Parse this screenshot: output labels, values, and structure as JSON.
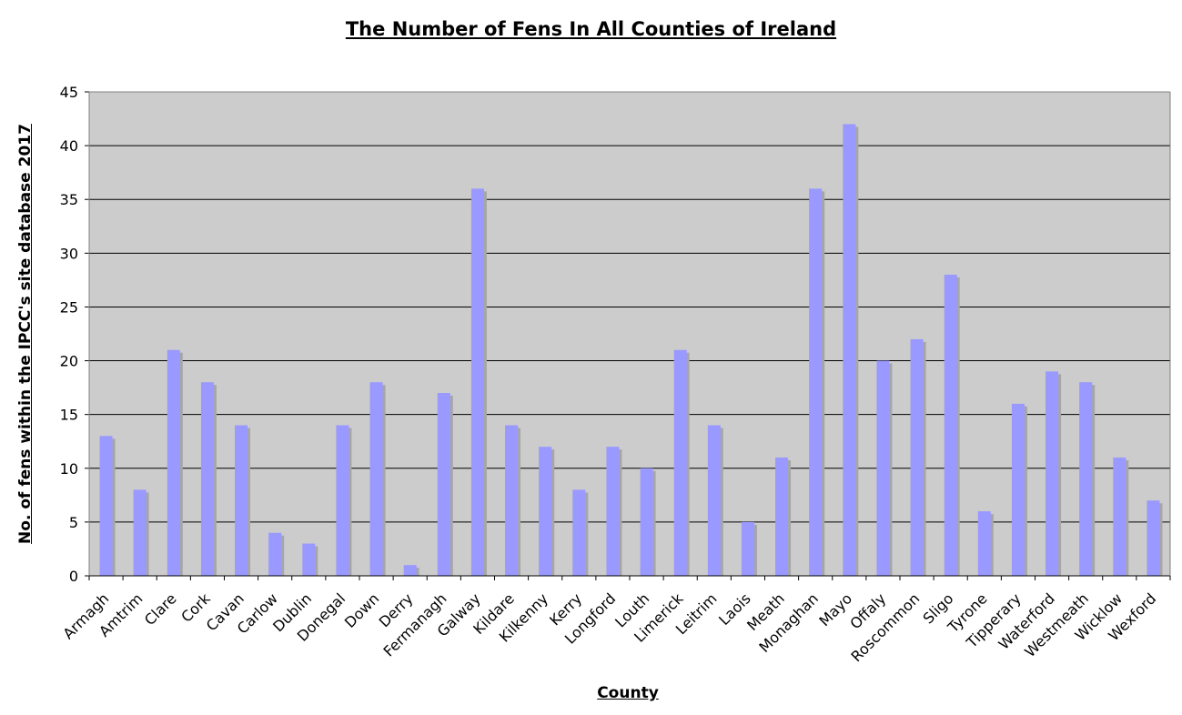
{
  "chart_data": {
    "type": "bar",
    "title": "The Number of Fens In All Counties of Ireland",
    "xlabel": "County",
    "ylabel": "No. of fens within the IPCC's site database 2017",
    "ylim": [
      0,
      45
    ],
    "yticks": [
      0,
      5,
      10,
      15,
      20,
      25,
      30,
      35,
      40,
      45
    ],
    "grid": true,
    "legend": "none",
    "categories": [
      "Armagh",
      "Amtrim",
      "Clare",
      "Cork",
      "Cavan",
      "Carlow",
      "Dublin",
      "Donegal",
      "Down",
      "Derry",
      "Fermanagh",
      "Galway",
      "Kildare",
      "Kilkenny",
      "Kerry",
      "Longford",
      "Louth",
      "Limerick",
      "Leitrim",
      "Laois",
      "Meath",
      "Monaghan",
      "Mayo",
      "Offaly",
      "Roscommon",
      "Sligo",
      "Tyrone",
      "Tipperary",
      "Waterford",
      "Westmeath",
      "Wicklow",
      "Wexford"
    ],
    "values": [
      13,
      8,
      21,
      18,
      14,
      4,
      3,
      14,
      18,
      1,
      17,
      36,
      14,
      12,
      8,
      12,
      10,
      21,
      14,
      5,
      11,
      36,
      42,
      20,
      22,
      28,
      6,
      16,
      19,
      18,
      11,
      7
    ],
    "colors": {
      "bar": "#9999ff",
      "bar_shadow": "#a6a6a6",
      "plot_background": "#cccccc",
      "gridline": "#000000",
      "axis": "#808080"
    }
  }
}
